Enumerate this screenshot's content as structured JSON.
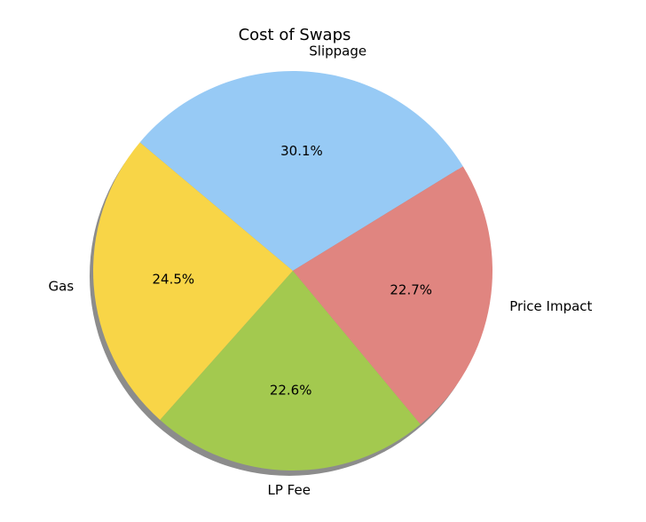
{
  "chart_data": {
    "type": "pie",
    "title": "Cost of Swaps",
    "categories": [
      "Slippage",
      "Price Impact",
      "LP Fee",
      "Gas"
    ],
    "values": [
      30.1,
      22.7,
      22.6,
      24.5
    ],
    "value_labels": [
      "30.1%",
      "22.7%",
      "22.6%",
      "24.5%"
    ],
    "colors": [
      "#97caf5",
      "#e08580",
      "#a3c94f",
      "#f8d547"
    ],
    "shadow": true
  }
}
